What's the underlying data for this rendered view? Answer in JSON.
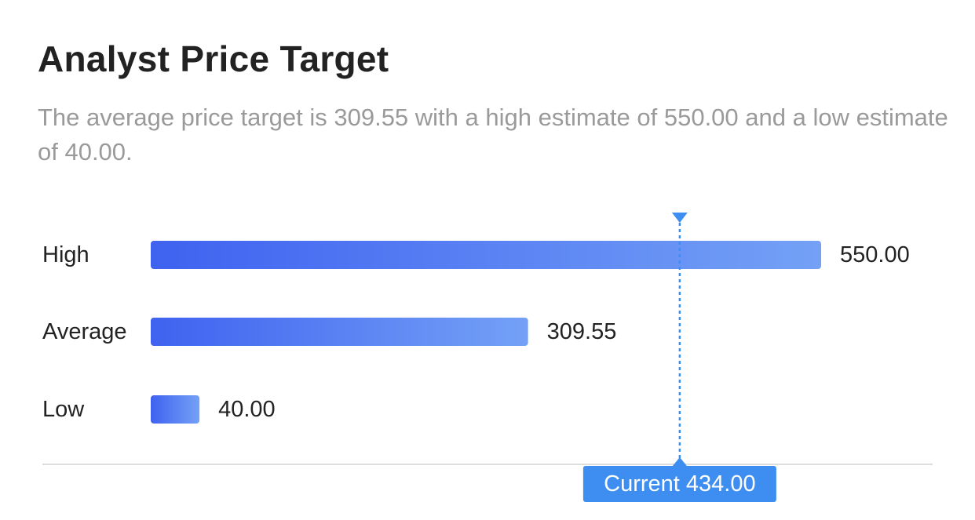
{
  "header": {
    "title": "Analyst Price Target",
    "subtitle": "The average price target is 309.55 with a high estimate of 550.00 and a low estimate of 40.00."
  },
  "chart_data": {
    "type": "bar",
    "orientation": "horizontal",
    "categories": [
      "High",
      "Average",
      "Low"
    ],
    "values": [
      550.0,
      309.55,
      40.0
    ],
    "value_labels": [
      "550.00",
      "309.55",
      "40.00"
    ],
    "current": {
      "label": "Current 434.00",
      "value": 434.0
    },
    "xlim": [
      0,
      550
    ],
    "grid": false,
    "colors": {
      "bar_start": "#3f62f0",
      "bar_end": "#74a1f6",
      "marker": "#3d8ef0",
      "baseline": "#dddddd"
    }
  }
}
